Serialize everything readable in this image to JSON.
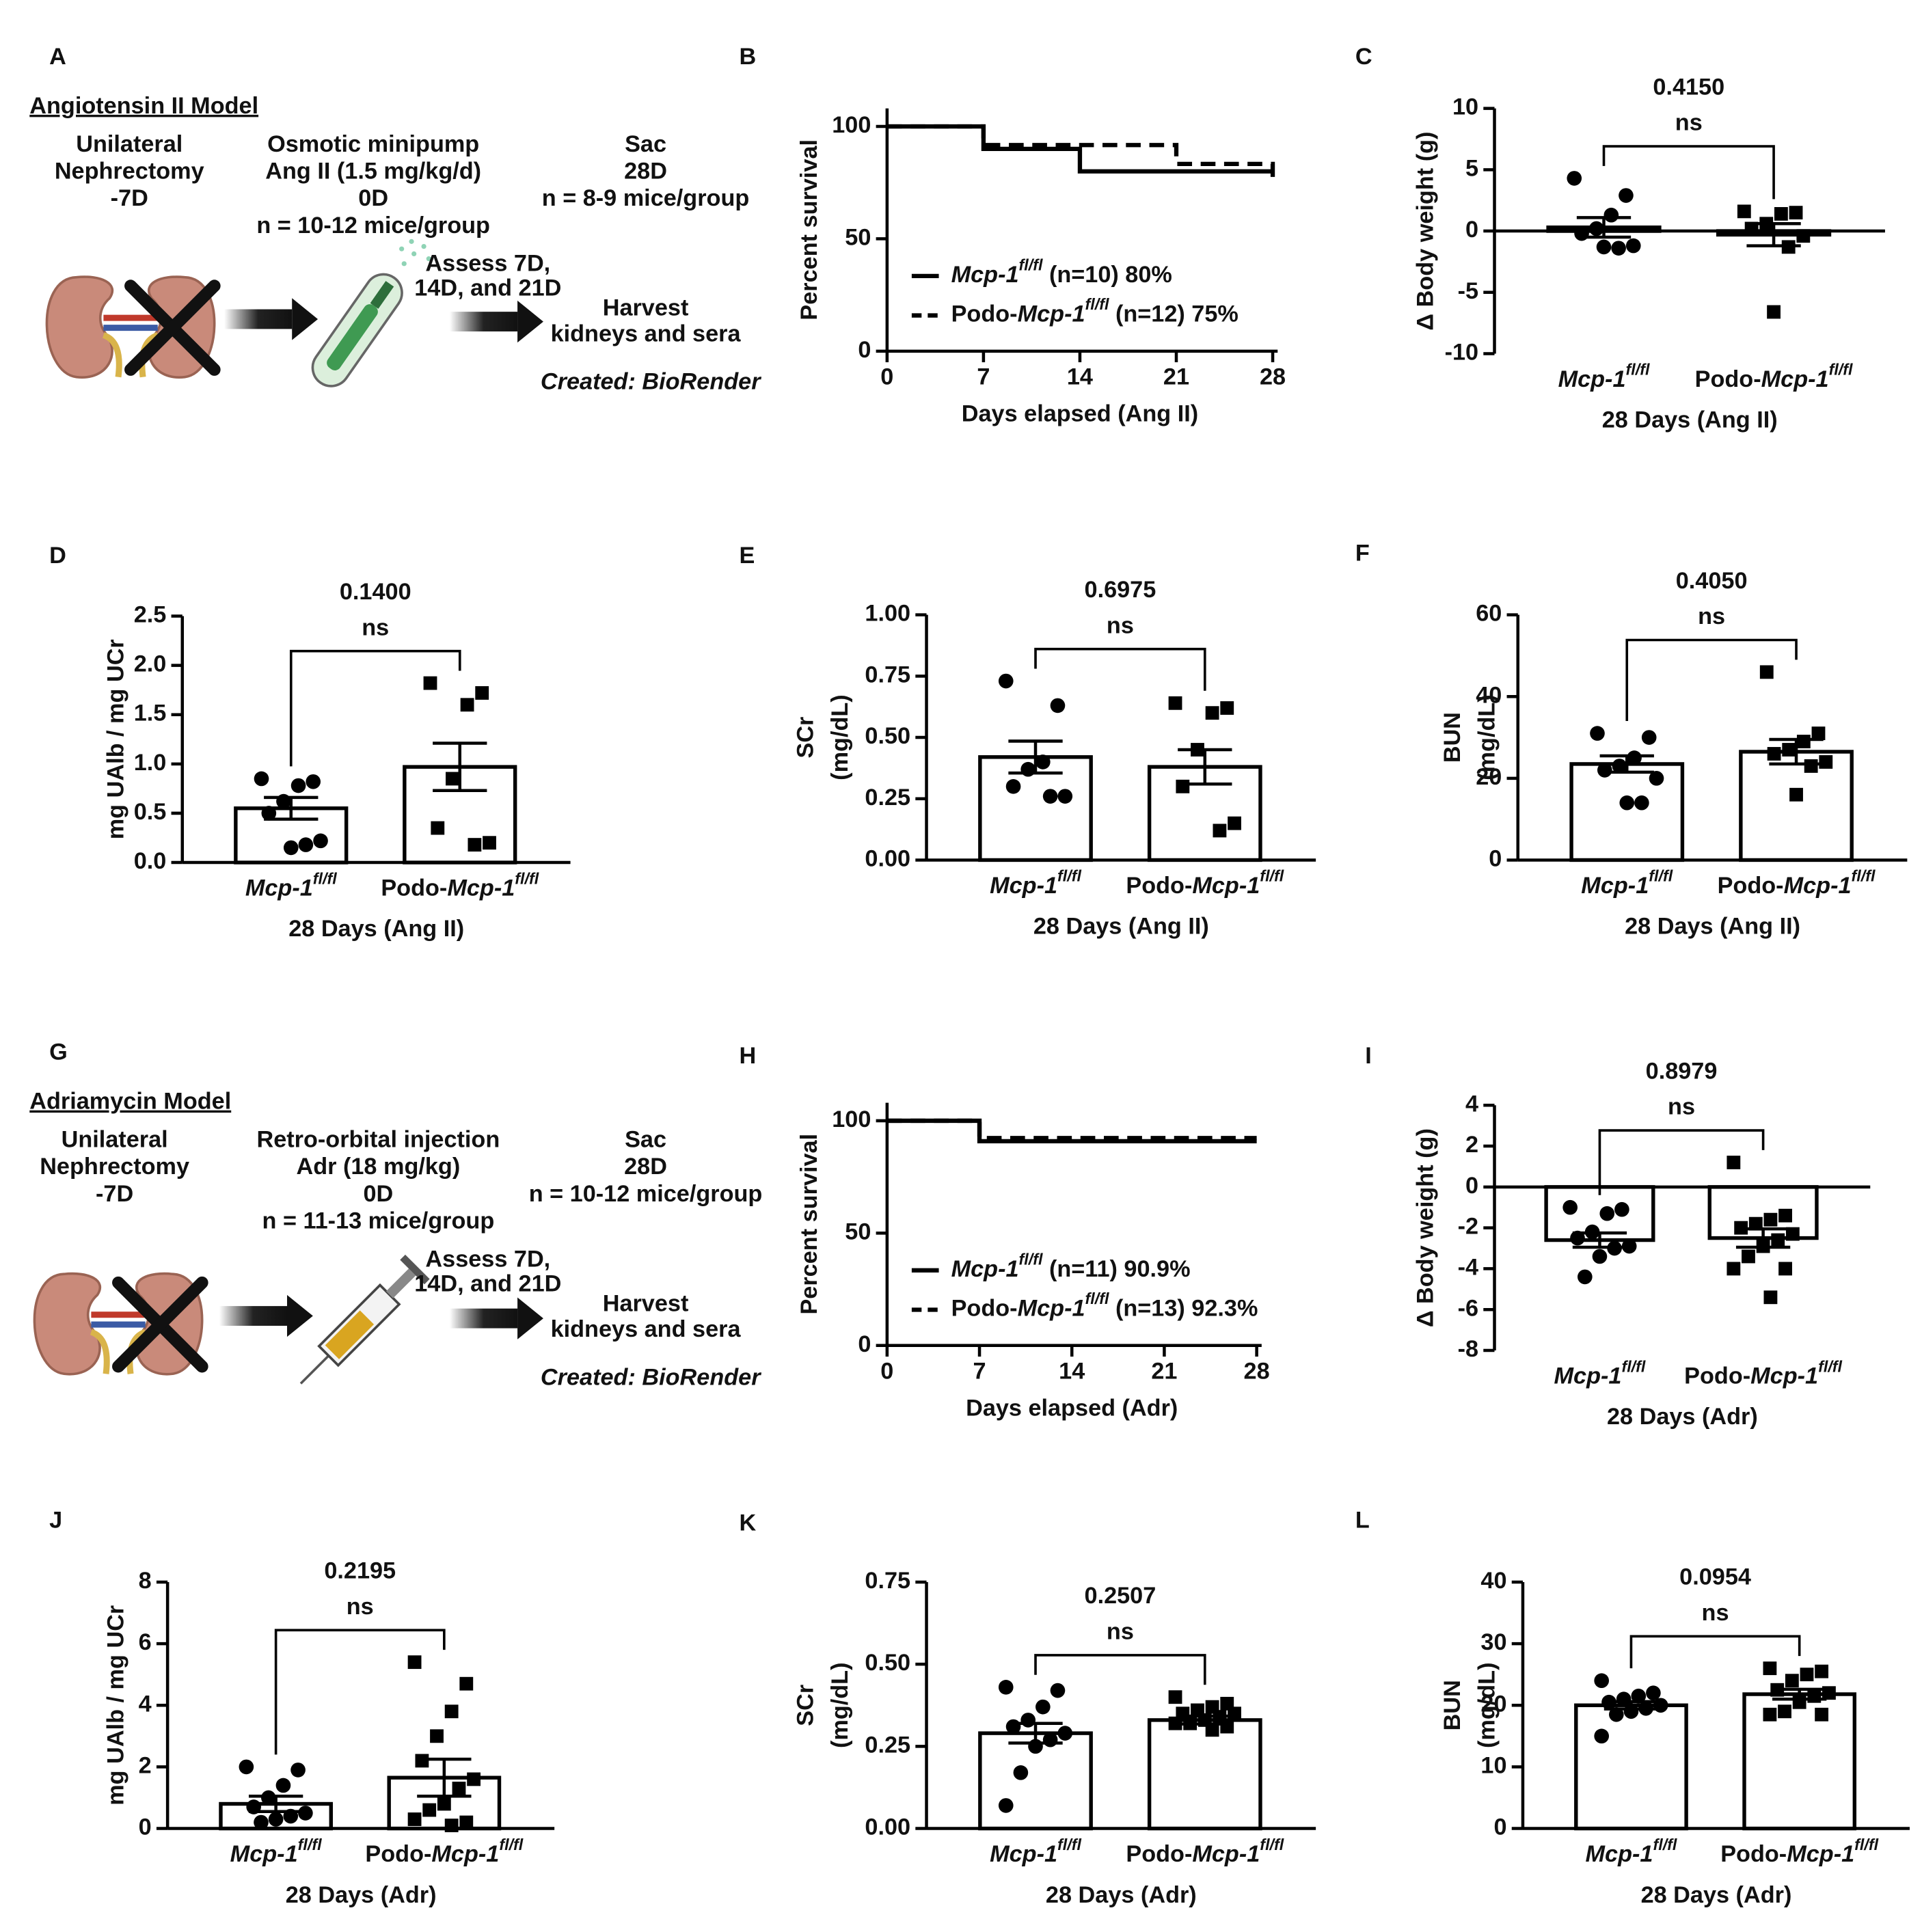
{
  "chart_data": [
    {
      "panel": "B",
      "type": "step",
      "ylabel": "Percent survival",
      "xlabel": "Days elapsed (Ang II)",
      "xlim": [
        0,
        28
      ],
      "xticks": [
        0,
        7,
        14,
        21,
        28
      ],
      "ylim": [
        0,
        108
      ],
      "yticks": [
        0,
        50,
        100
      ],
      "legend": "lower left",
      "series": [
        {
          "name": "Mcp-1",
          "sup": "fl/fl",
          "suffix": " (n=10) 80%",
          "color": "#000000",
          "dash": false,
          "x": [
            0,
            7,
            14,
            28
          ],
          "values": [
            100,
            90,
            80,
            80
          ]
        },
        {
          "prefix": "Podo-",
          "name": "Mcp-1",
          "sup": "fl/fl",
          "suffix": " (n=12) 75%",
          "color": "#000000",
          "dash": true,
          "x": [
            0,
            7,
            21,
            28,
            28
          ],
          "values": [
            100,
            91.7,
            83.3,
            83.3,
            75
          ]
        }
      ]
    },
    {
      "panel": "C",
      "type": "bar",
      "ylabel": "Δ Body weight (g)",
      "xlabel": "28 Days (Ang II)",
      "ylim": [
        -10,
        10
      ],
      "yticks": [
        -10,
        -5,
        0,
        5,
        10
      ],
      "color": "#000000",
      "fill": "#ffffff",
      "markers": [
        "circle",
        "square"
      ],
      "categories": [
        {
          "name": "Mcp-1",
          "sup": "fl/fl"
        },
        {
          "prefix": "Podo-",
          "name": "Mcp-1",
          "sup": "fl/fl"
        }
      ],
      "values": [
        0.3,
        -0.3
      ],
      "errors": [
        0.8,
        0.9
      ],
      "points": [
        [
          4.3,
          2.9,
          1.3,
          0.2,
          -0.2,
          -1.2,
          -1.4,
          -1.3
        ],
        [
          1.6,
          1.5,
          1.4,
          0.6,
          0.2,
          -0.4,
          -1.3,
          -6.6
        ]
      ],
      "p_value": "0.4150",
      "significance": "ns"
    },
    {
      "panel": "D",
      "type": "bar",
      "ylabel": "mg UAlb / mg UCr",
      "xlabel": "28 Days (Ang II)",
      "ylim": [
        0,
        2.5
      ],
      "yticks": [
        {
          "value": 0,
          "label": "0.0"
        },
        0.5,
        {
          "value": 1,
          "label": "1.0"
        },
        1.5,
        {
          "value": 2,
          "label": "2.0"
        },
        2.5
      ],
      "color": "#000000",
      "fill": "#ffffff",
      "markers": [
        "circle",
        "square"
      ],
      "categories": [
        {
          "name": "Mcp-1",
          "sup": "fl/fl"
        },
        {
          "prefix": "Podo-",
          "name": "Mcp-1",
          "sup": "fl/fl"
        }
      ],
      "values": [
        0.55,
        0.97
      ],
      "errors": [
        0.11,
        0.24
      ],
      "points": [
        [
          0.85,
          0.82,
          0.78,
          0.62,
          0.5,
          0.22,
          0.18,
          0.15
        ],
        [
          1.82,
          1.72,
          1.6,
          0.85,
          0.35,
          0.2,
          0.18
        ]
      ],
      "p_value": "0.1400",
      "significance": "ns"
    },
    {
      "panel": "E",
      "type": "bar",
      "ylabel": [
        "SCr",
        "(mg/dL)"
      ],
      "xlabel": "28 Days (Ang II)",
      "ylim": [
        0,
        1
      ],
      "yticks": [
        {
          "value": 0,
          "label": "0.00"
        },
        0.25,
        {
          "value": 0.5,
          "label": "0.50"
        },
        0.75,
        {
          "value": 1,
          "label": "1.00"
        }
      ],
      "color": "#000000",
      "fill": "#ffffff",
      "markers": [
        "circle",
        "square"
      ],
      "categories": [
        {
          "name": "Mcp-1",
          "sup": "fl/fl"
        },
        {
          "prefix": "Podo-",
          "name": "Mcp-1",
          "sup": "fl/fl"
        }
      ],
      "values": [
        0.42,
        0.38
      ],
      "errors": [
        0.065,
        0.07
      ],
      "points": [
        [
          0.73,
          0.63,
          0.4,
          0.37,
          0.3,
          0.26,
          0.26
        ],
        [
          0.64,
          0.62,
          0.6,
          0.45,
          0.3,
          0.15,
          0.12
        ]
      ],
      "p_value": "0.6975",
      "significance": "ns"
    },
    {
      "panel": "F",
      "type": "bar",
      "ylabel": [
        "BUN",
        "(mg/dL)"
      ],
      "xlabel": "28 Days (Ang II)",
      "ylim": [
        0,
        60
      ],
      "yticks": [
        0,
        20,
        40,
        60
      ],
      "color": "#000000",
      "fill": "#ffffff",
      "markers": [
        "circle",
        "square"
      ],
      "categories": [
        {
          "name": "Mcp-1",
          "sup": "fl/fl"
        },
        {
          "prefix": "Podo-",
          "name": "Mcp-1",
          "sup": "fl/fl"
        }
      ],
      "values": [
        23.5,
        26.5
      ],
      "errors": [
        2,
        3
      ],
      "points": [
        [
          31,
          30,
          25,
          23,
          22,
          20,
          14,
          14
        ],
        [
          46,
          31,
          29,
          27,
          26,
          24,
          23,
          16
        ]
      ],
      "p_value": "0.4050",
      "significance": "ns"
    },
    {
      "panel": "H",
      "type": "step",
      "ylabel": "Percent survival",
      "xlabel": "Days elapsed (Adr)",
      "xlim": [
        0,
        28
      ],
      "xticks": [
        0,
        7,
        14,
        21,
        28
      ],
      "ylim": [
        0,
        108
      ],
      "yticks": [
        0,
        50,
        100
      ],
      "legend": "lower left",
      "series": [
        {
          "name": "Mcp-1",
          "sup": "fl/fl",
          "suffix": " (n=11) 90.9%",
          "color": "#000000",
          "dash": false,
          "x": [
            0,
            7,
            28
          ],
          "values": [
            100,
            90.9,
            90.9
          ]
        },
        {
          "prefix": "Podo-",
          "name": "Mcp-1",
          "sup": "fl/fl",
          "suffix": " (n=13) 92.3%",
          "color": "#000000",
          "dash": true,
          "x": [
            0,
            7,
            28
          ],
          "values": [
            100,
            92.3,
            92.3
          ]
        }
      ]
    },
    {
      "panel": "I",
      "type": "bar",
      "ylabel": "Δ Body weight (g)",
      "xlabel": "28 Days (Adr)",
      "ylim": [
        -8,
        4
      ],
      "yticks": [
        -8,
        -6,
        -4,
        -2,
        0,
        2,
        4
      ],
      "color": "#000000",
      "fill": "#ffffff",
      "markers": [
        "circle",
        "square"
      ],
      "categories": [
        {
          "name": "Mcp-1",
          "sup": "fl/fl"
        },
        {
          "prefix": "Podo-",
          "name": "Mcp-1",
          "sup": "fl/fl"
        }
      ],
      "values": [
        -2.6,
        -2.5
      ],
      "errors": [
        0.35,
        0.45
      ],
      "points": [
        [
          -1,
          -1.1,
          -1.3,
          -2.2,
          -2.5,
          -2.9,
          -3,
          -3.4,
          -4.4
        ],
        [
          1.2,
          -1.4,
          -1.6,
          -1.8,
          -2,
          -2.3,
          -2.6,
          -2.9,
          -3.4,
          -4,
          -4,
          -5.4
        ]
      ],
      "p_value": "0.8979",
      "significance": "ns"
    },
    {
      "panel": "J",
      "type": "bar",
      "ylabel": "mg UAlb / mg UCr",
      "xlabel": "28 Days (Adr)",
      "ylim": [
        0,
        8
      ],
      "yticks": [
        0,
        2,
        4,
        6,
        8
      ],
      "color": "#000000",
      "fill": "#ffffff",
      "markers": [
        "circle",
        "square"
      ],
      "categories": [
        {
          "name": "Mcp-1",
          "sup": "fl/fl"
        },
        {
          "prefix": "Podo-",
          "name": "Mcp-1",
          "sup": "fl/fl"
        }
      ],
      "values": [
        0.8,
        1.65
      ],
      "errors": [
        0.25,
        0.6
      ],
      "points": [
        [
          2,
          1.9,
          1.4,
          1,
          0.7,
          0.5,
          0.4,
          0.3,
          0.2
        ],
        [
          5.4,
          4.7,
          3.8,
          3,
          2.2,
          1.6,
          1.3,
          0.8,
          0.6,
          0.3,
          0.2,
          0.1
        ]
      ],
      "p_value": "0.2195",
      "significance": "ns"
    },
    {
      "panel": "K",
      "type": "bar",
      "ylabel": [
        "SCr",
        "(mg/dL)"
      ],
      "xlabel": "28 Days (Adr)",
      "ylim": [
        0,
        0.75
      ],
      "yticks": [
        {
          "value": 0,
          "label": "0.00"
        },
        0.25,
        {
          "value": 0.5,
          "label": "0.50"
        },
        0.75
      ],
      "color": "#000000",
      "fill": "#ffffff",
      "markers": [
        "circle",
        "square"
      ],
      "categories": [
        {
          "name": "Mcp-1",
          "sup": "fl/fl"
        },
        {
          "prefix": "Podo-",
          "name": "Mcp-1",
          "sup": "fl/fl"
        }
      ],
      "values": [
        0.29,
        0.33
      ],
      "errors": [
        0.03,
        0.012
      ],
      "points": [
        [
          0.43,
          0.42,
          0.37,
          0.33,
          0.31,
          0.29,
          0.27,
          0.25,
          0.17,
          0.07
        ],
        [
          0.4,
          0.38,
          0.37,
          0.36,
          0.35,
          0.35,
          0.34,
          0.33,
          0.32,
          0.32,
          0.31,
          0.3
        ]
      ],
      "p_value": "0.2507",
      "significance": "ns"
    },
    {
      "panel": "L",
      "type": "bar",
      "ylabel": [
        "BUN",
        "(mg/dL)"
      ],
      "xlabel": "28 Days (Adr)",
      "ylim": [
        0,
        40
      ],
      "yticks": [
        0,
        10,
        20,
        30,
        40
      ],
      "color": "#000000",
      "fill": "#ffffff",
      "markers": [
        "circle",
        "square"
      ],
      "categories": [
        {
          "name": "Mcp-1",
          "sup": "fl/fl"
        },
        {
          "prefix": "Podo-",
          "name": "Mcp-1",
          "sup": "fl/fl"
        }
      ],
      "values": [
        20,
        21.8
      ],
      "errors": [
        0.6,
        0.8
      ],
      "points": [
        [
          24,
          22,
          21.5,
          21,
          20.5,
          20,
          19.5,
          19,
          18.5,
          15
        ],
        [
          26,
          25.5,
          25,
          24,
          22.5,
          22,
          21.5,
          20.5,
          19,
          18.5,
          18.5
        ]
      ],
      "p_value": "0.0954",
      "significance": "ns"
    }
  ],
  "diagrams": [
    {
      "panel": "A",
      "title": "Angiotensin II Model",
      "steps": [
        {
          "heading": [
            "Unilateral",
            "Nephrectomy"
          ],
          "lines": [
            "-7D"
          ]
        },
        {
          "heading": [
            "Osmotic minipump"
          ],
          "lines": [
            "Ang II (1.5 mg/kg/d)",
            "0D",
            "n = 10-12 mice/group"
          ]
        },
        {
          "heading": [
            "Sac"
          ],
          "lines": [
            "28D",
            "n = 8-9 mice/group"
          ]
        }
      ],
      "assess": [
        "Assess 7D,",
        "14D, and 21D"
      ],
      "outcome": [
        "Harvest",
        "kidneys and sera"
      ],
      "credit": "Created: BioRender"
    },
    {
      "panel": "G",
      "title": "Adriamycin Model",
      "steps": [
        {
          "heading": [
            "Unilateral",
            "Nephrectomy"
          ],
          "lines": [
            "-7D"
          ]
        },
        {
          "heading": [
            "Retro-orbital injection"
          ],
          "lines": [
            "Adr (18 mg/kg)",
            "0D",
            "n = 11-13 mice/group"
          ]
        },
        {
          "heading": [
            "Sac"
          ],
          "lines": [
            "28D",
            "n = 10-12 mice/group"
          ]
        }
      ],
      "assess": [
        "Assess 7D,",
        "14D, and 21D"
      ],
      "outcome": [
        "Harvest",
        "kidneys and sera"
      ],
      "credit": "Created: BioRender"
    }
  ]
}
